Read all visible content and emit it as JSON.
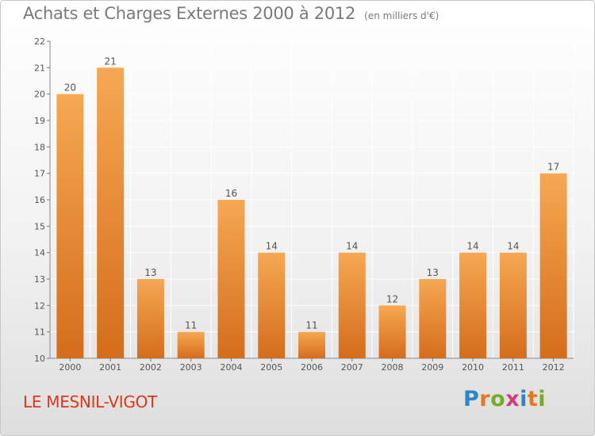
{
  "chart_data": {
    "type": "bar",
    "title": "Achats et Charges Externes 2000 à 2012",
    "subtitle": "(en milliers d'€)",
    "xlabel": "",
    "ylabel": "",
    "categories": [
      "2000",
      "2001",
      "2002",
      "2003",
      "2004",
      "2005",
      "2006",
      "2007",
      "2008",
      "2009",
      "2010",
      "2011",
      "2012"
    ],
    "values": [
      20,
      21,
      13,
      11,
      16,
      14,
      11,
      14,
      12,
      13,
      14,
      14,
      17
    ],
    "data_labels": [
      "20",
      "21",
      "13",
      "11",
      "16",
      "14",
      "11",
      "14",
      "12",
      "13",
      "14",
      "14",
      "17"
    ],
    "ylim": [
      10,
      22
    ],
    "yticks": [
      10,
      11,
      12,
      13,
      14,
      15,
      16,
      17,
      18,
      19,
      20,
      21,
      22
    ],
    "grid": true,
    "legend": "none"
  },
  "place": "LE MESNIL-VIGOT",
  "brand": {
    "name": "Proxiti",
    "letters": [
      "P",
      "r",
      "o",
      "x",
      "i",
      "t",
      "i"
    ],
    "letter_colors": [
      "#2a86c8",
      "#e8761e",
      "#74ac2c",
      "#d63c7c",
      "#2a86c8",
      "#e8761e",
      "#74ac2c"
    ]
  },
  "colors": {
    "bar_top": "#f6a852",
    "bar_bottom": "#d46d1c",
    "grid": "#ffffff",
    "text": "#555555",
    "place": "#d9381e"
  }
}
